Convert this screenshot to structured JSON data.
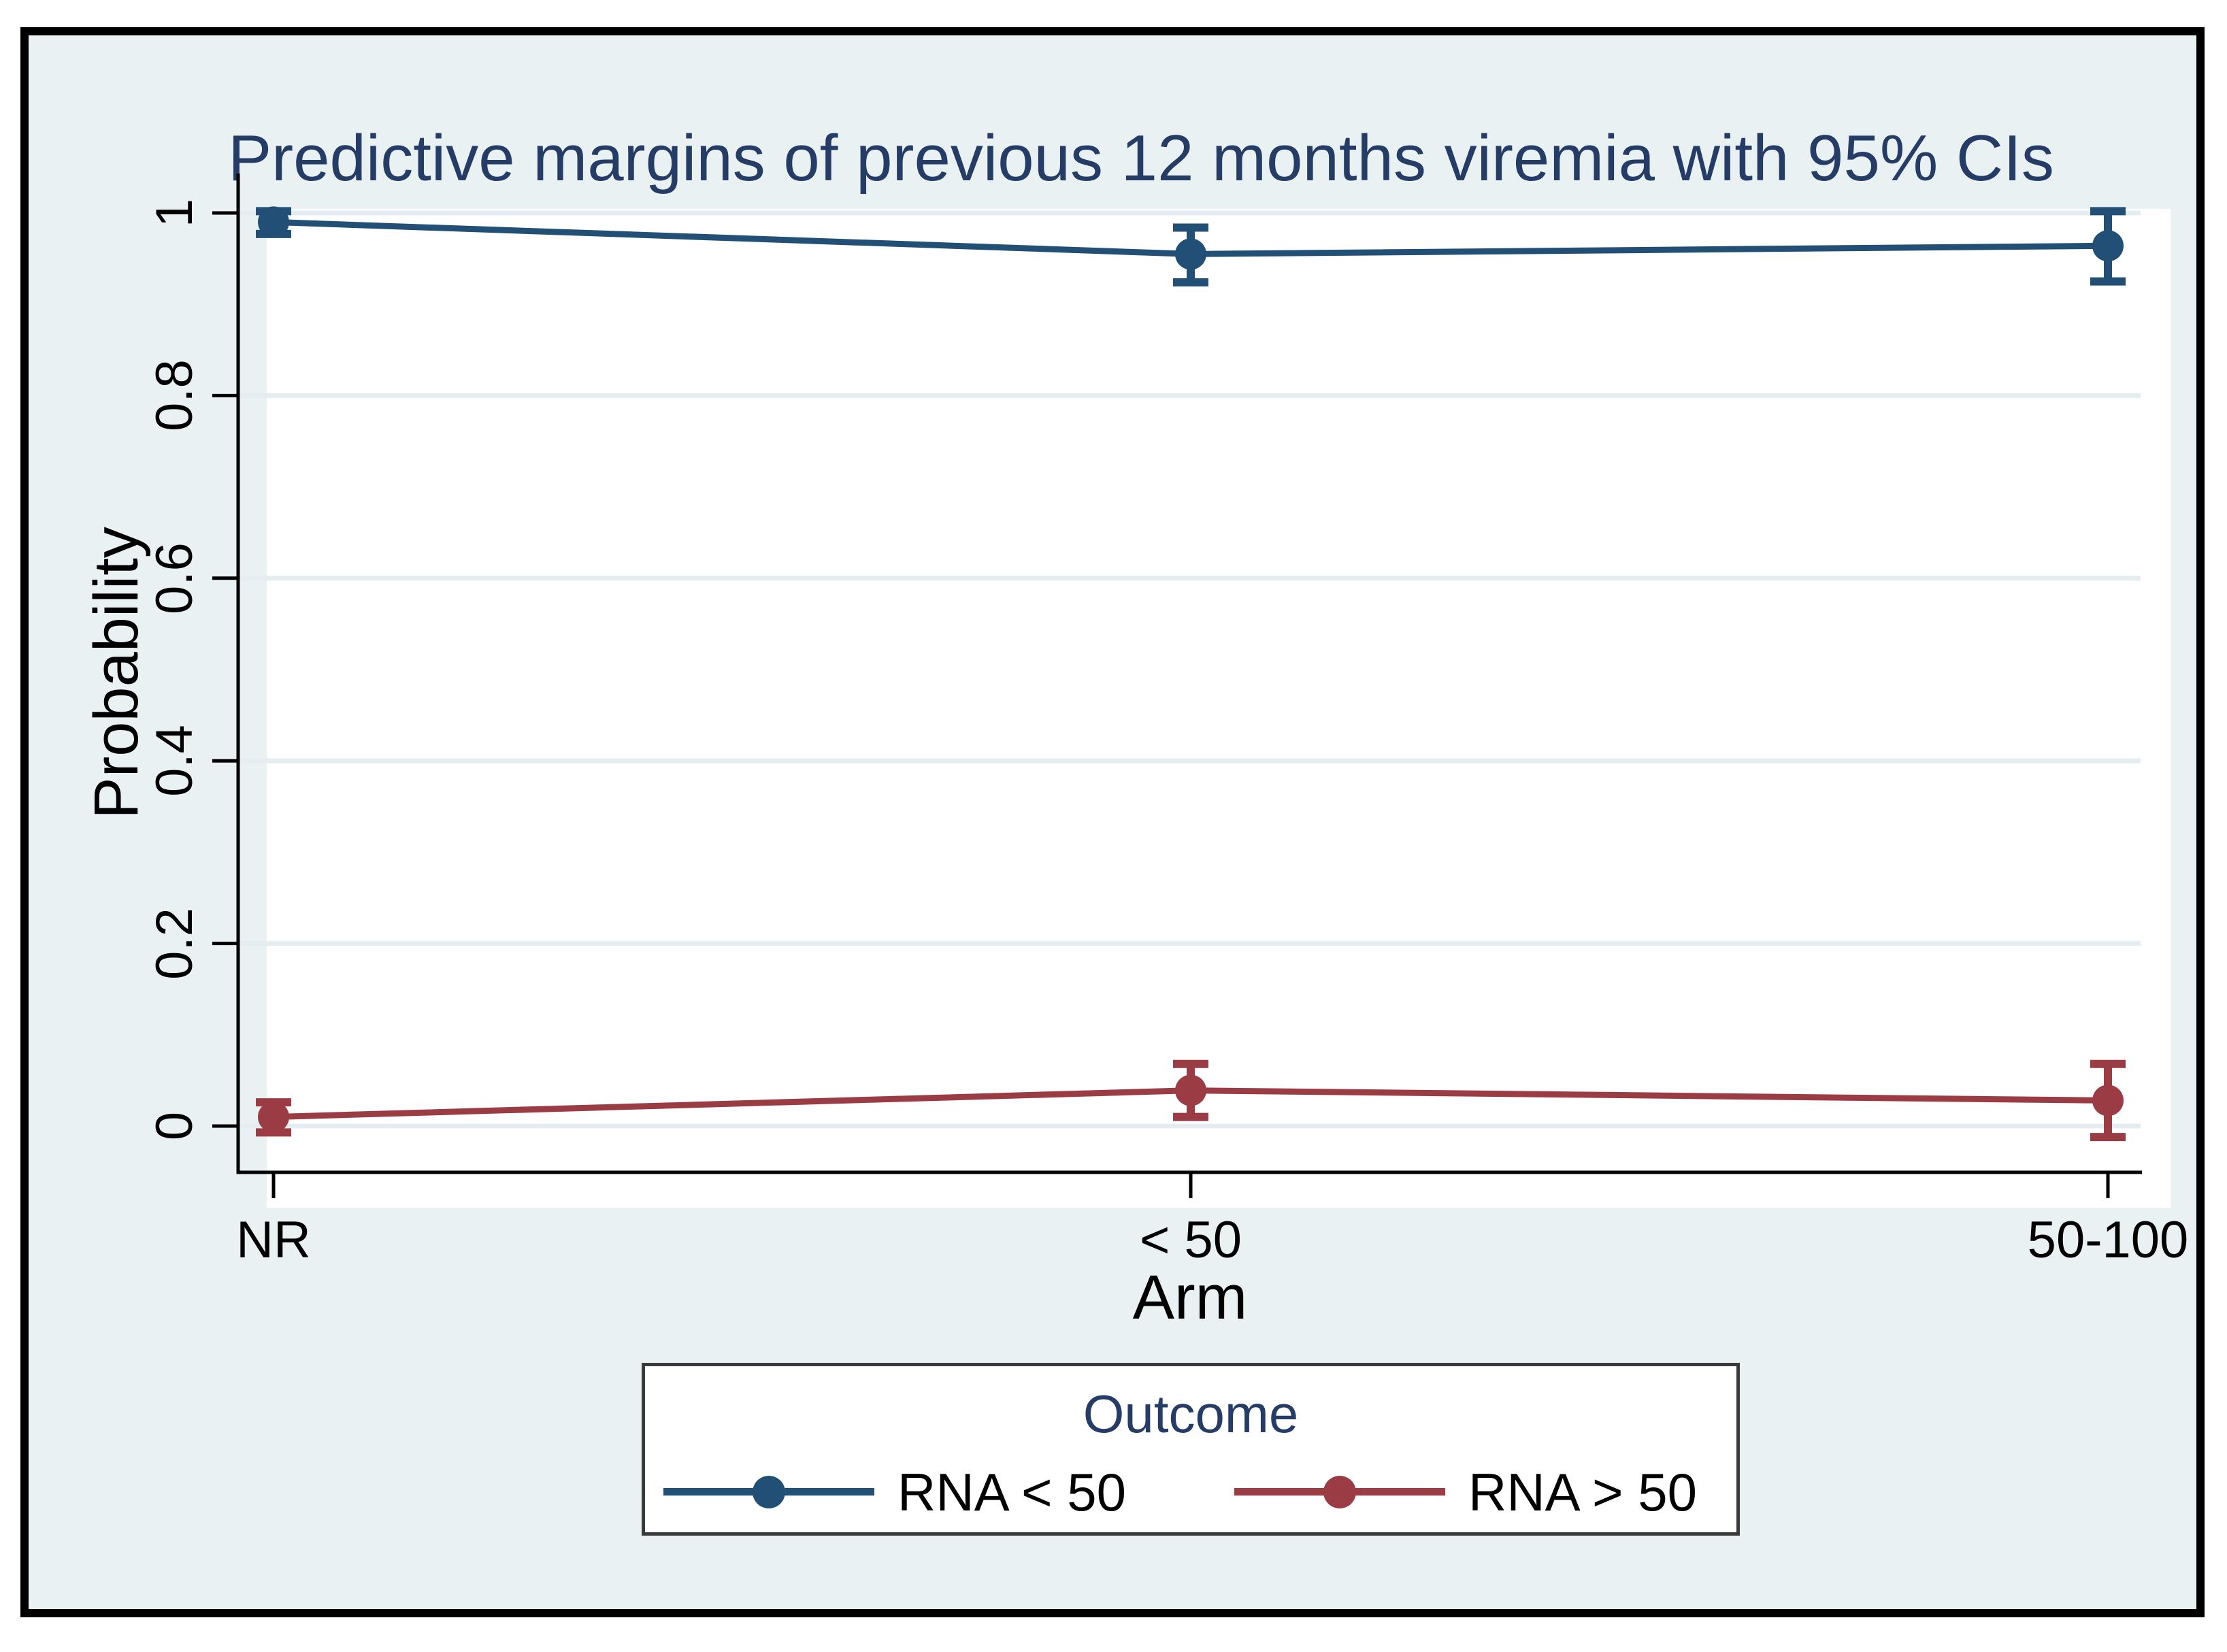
{
  "figure": {
    "background": "#eaf1f3",
    "border_color": "#000000",
    "title_color": "#253c66"
  },
  "chart_data": {
    "type": "line",
    "title": "Predictive margins of previous 12 months viremia with 95% CIs",
    "xlabel": "Arm",
    "ylabel": "Probability",
    "categories": [
      "NR",
      "< 50",
      "50-100"
    ],
    "yticks": [
      0,
      0.2,
      0.4,
      0.6,
      0.8,
      1
    ],
    "ytick_labels": [
      "0",
      "0.2",
      "0.4",
      "0.6",
      "0.8",
      "1"
    ],
    "ylim": [
      -0.05,
      1.043
    ],
    "grid": true,
    "gridline_color": "#e4eef1",
    "axis_color": "#000000",
    "error_bars": "95% CI",
    "series": [
      {
        "name": "RNA < 50",
        "color": "#224f75",
        "values": [
          0.99,
          0.955,
          0.964
        ],
        "ci_low": [
          0.977,
          0.924,
          0.925
        ],
        "ci_high": [
          1.002,
          0.984,
          1.002
        ]
      },
      {
        "name": "RNA > 50",
        "color": "#9b3c45",
        "values": [
          0.01,
          0.039,
          0.028
        ],
        "ci_low": [
          -0.007,
          0.01,
          -0.012
        ],
        "ci_high": [
          0.026,
          0.068,
          0.068
        ]
      }
    ],
    "legend": {
      "title": "Outcome",
      "position": "bottom",
      "entries": [
        "RNA < 50",
        "RNA > 50"
      ]
    }
  }
}
